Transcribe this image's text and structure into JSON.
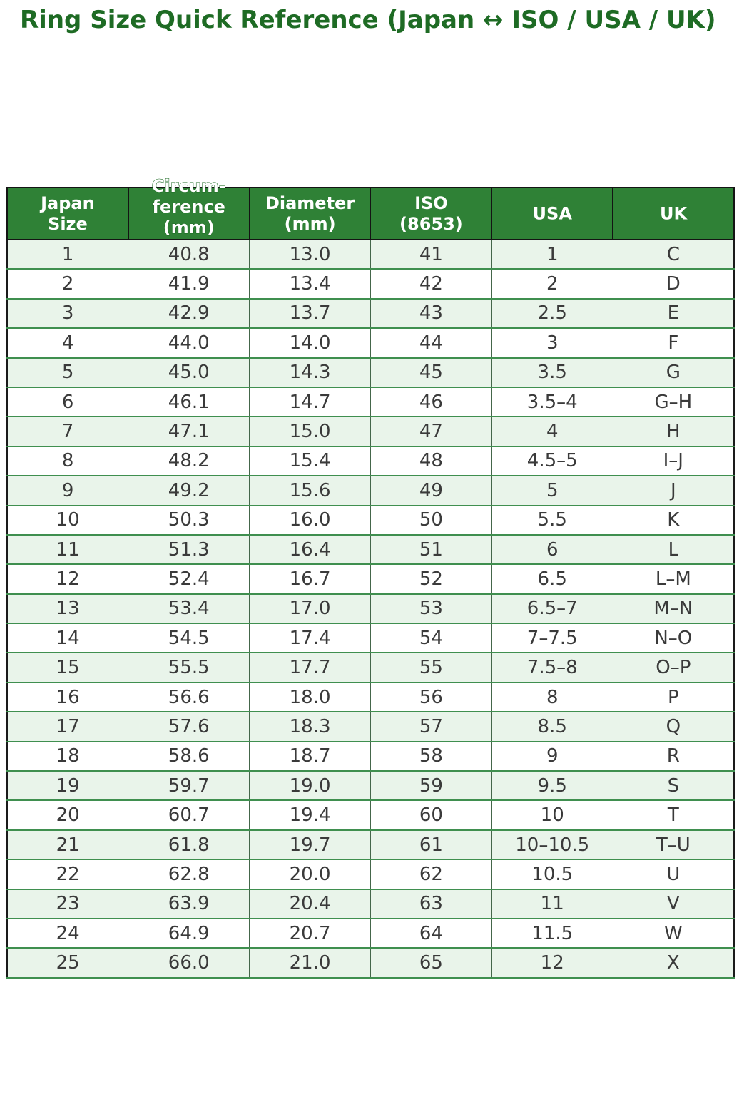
{
  "title": "Ring Size Quick Reference (Japan ↔ ISO / USA / UK)",
  "table": {
    "columns": [
      {
        "id": "japan-size",
        "label": "Japan Size",
        "lines": [
          "Japan",
          "Size"
        ]
      },
      {
        "id": "circumference-mm",
        "label": "Circum-ference (mm)",
        "lines": [
          "Circum-",
          "ference",
          "(mm)"
        ],
        "overflow": true
      },
      {
        "id": "diameter-mm",
        "label": "Diameter (mm)",
        "lines": [
          "Diameter",
          "(mm)"
        ]
      },
      {
        "id": "iso-8653",
        "label": "ISO (8653)",
        "lines": [
          "ISO",
          "(8653)"
        ]
      },
      {
        "id": "usa",
        "label": "USA",
        "lines": [
          "USA"
        ]
      },
      {
        "id": "uk",
        "label": "UK",
        "lines": [
          "UK"
        ]
      }
    ],
    "rows": [
      [
        "1",
        "40.8",
        "13.0",
        "41",
        "1",
        "C"
      ],
      [
        "2",
        "41.9",
        "13.4",
        "42",
        "2",
        "D"
      ],
      [
        "3",
        "42.9",
        "13.7",
        "43",
        "2.5",
        "E"
      ],
      [
        "4",
        "44.0",
        "14.0",
        "44",
        "3",
        "F"
      ],
      [
        "5",
        "45.0",
        "14.3",
        "45",
        "3.5",
        "G"
      ],
      [
        "6",
        "46.1",
        "14.7",
        "46",
        "3.5–4",
        "G–H"
      ],
      [
        "7",
        "47.1",
        "15.0",
        "47",
        "4",
        "H"
      ],
      [
        "8",
        "48.2",
        "15.4",
        "48",
        "4.5–5",
        "I–J"
      ],
      [
        "9",
        "49.2",
        "15.6",
        "49",
        "5",
        "J"
      ],
      [
        "10",
        "50.3",
        "16.0",
        "50",
        "5.5",
        "K"
      ],
      [
        "11",
        "51.3",
        "16.4",
        "51",
        "6",
        "L"
      ],
      [
        "12",
        "52.4",
        "16.7",
        "52",
        "6.5",
        "L–M"
      ],
      [
        "13",
        "53.4",
        "17.0",
        "53",
        "6.5–7",
        "M–N"
      ],
      [
        "14",
        "54.5",
        "17.4",
        "54",
        "7–7.5",
        "N–O"
      ],
      [
        "15",
        "55.5",
        "17.7",
        "55",
        "7.5–8",
        "O–P"
      ],
      [
        "16",
        "56.6",
        "18.0",
        "56",
        "8",
        "P"
      ],
      [
        "17",
        "57.6",
        "18.3",
        "57",
        "8.5",
        "Q"
      ],
      [
        "18",
        "58.6",
        "18.7",
        "58",
        "9",
        "R"
      ],
      [
        "19",
        "59.7",
        "19.0",
        "59",
        "9.5",
        "S"
      ],
      [
        "20",
        "60.7",
        "19.4",
        "60",
        "10",
        "T"
      ],
      [
        "21",
        "61.8",
        "19.7",
        "61",
        "10–10.5",
        "T–U"
      ],
      [
        "22",
        "62.8",
        "20.0",
        "62",
        "10.5",
        "U"
      ],
      [
        "23",
        "63.9",
        "20.4",
        "63",
        "11",
        "V"
      ],
      [
        "24",
        "64.9",
        "20.7",
        "64",
        "11.5",
        "W"
      ],
      [
        "25",
        "66.0",
        "21.0",
        "65",
        "12",
        "X"
      ]
    ]
  },
  "colors": {
    "title_green": "#1e6b24",
    "header_bg": "#2f8136",
    "header_text": "#ffffff",
    "row_alt_bg": "#e9f4ea",
    "row_bg": "#ffffff",
    "cell_text": "#3a3a3a",
    "outer_border": "#1a1a1a",
    "row_divider": "#3f8f4f",
    "col_divider": "#44664a"
  }
}
